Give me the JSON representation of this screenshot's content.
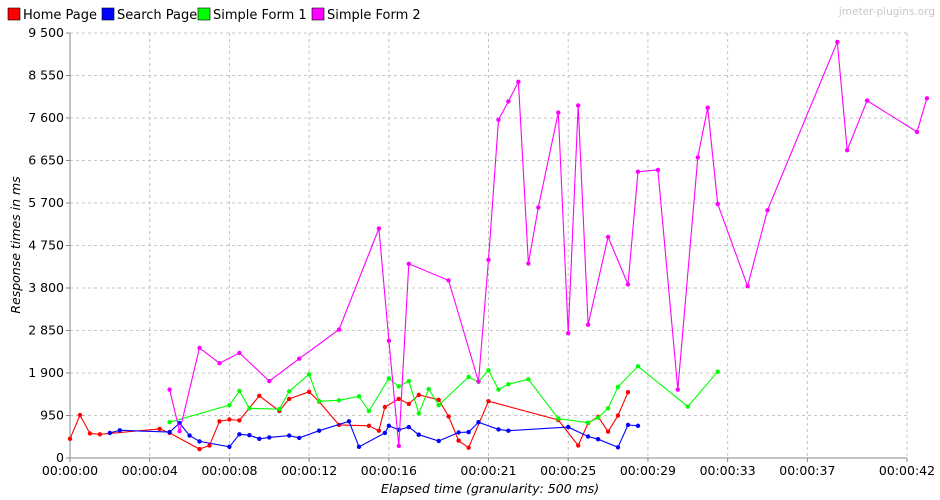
{
  "watermark": "jmeter-plugins.org",
  "chart_data": {
    "type": "line",
    "xlabel": "Elapsed time (granularity: 500 ms)",
    "ylabel": "Response times in ms",
    "xlim": [
      "00:00:00",
      "00:00:42"
    ],
    "ylim": [
      0,
      9500
    ],
    "x_ticks": [
      "00:00:00",
      "00:00:04",
      "00:00:08",
      "00:00:12",
      "00:00:16",
      "00:00:21",
      "00:00:25",
      "00:00:29",
      "00:00:33",
      "00:00:37",
      "00:00:42"
    ],
    "y_ticks": [
      "0",
      "950",
      "1 900",
      "2 850",
      "3 800",
      "4 750",
      "5 700",
      "6 650",
      "7 600",
      "8 550",
      "9 500"
    ],
    "grid": true,
    "legend_position": "top-left",
    "series": [
      {
        "name": "Home Page",
        "color": "#ff0000",
        "points": [
          [
            "00:00:00.0",
            430
          ],
          [
            "00:00:00.5",
            960
          ],
          [
            "00:00:01.0",
            550
          ],
          [
            "00:00:01.5",
            530
          ],
          [
            "00:00:04.5",
            650
          ],
          [
            "00:00:05.0",
            560
          ],
          [
            "00:00:06.5",
            200
          ],
          [
            "00:00:07.0",
            280
          ],
          [
            "00:00:07.5",
            820
          ],
          [
            "00:00:08.0",
            860
          ],
          [
            "00:00:08.5",
            840
          ],
          [
            "00:00:09.5",
            1390
          ],
          [
            "00:00:10.5",
            1050
          ],
          [
            "00:00:11.0",
            1320
          ],
          [
            "00:00:12.0",
            1480
          ],
          [
            "00:00:12.5",
            1260
          ],
          [
            "00:00:13.5",
            740
          ],
          [
            "00:00:15.0",
            720
          ],
          [
            "00:00:15.5",
            610
          ],
          [
            "00:00:15.8",
            1140
          ],
          [
            "00:00:16.5",
            1320
          ],
          [
            "00:00:17.0",
            1210
          ],
          [
            "00:00:17.5",
            1410
          ],
          [
            "00:00:18.5",
            1300
          ],
          [
            "00:00:19.0",
            930
          ],
          [
            "00:00:19.5",
            390
          ],
          [
            "00:00:20.0",
            230
          ],
          [
            "00:00:21.0",
            1270
          ],
          [
            "00:00:24.5",
            850
          ],
          [
            "00:00:25.5",
            280
          ],
          [
            "00:00:26.0",
            780
          ],
          [
            "00:00:26.5",
            920
          ],
          [
            "00:00:27.0",
            590
          ],
          [
            "00:00:27.5",
            950
          ],
          [
            "00:00:28.0",
            1470
          ]
        ]
      },
      {
        "name": "Search Page",
        "color": "#0000ff",
        "points": [
          [
            "00:00:02.0",
            560
          ],
          [
            "00:00:02.5",
            620
          ],
          [
            "00:00:05.0",
            580
          ],
          [
            "00:00:05.5",
            780
          ],
          [
            "00:00:06.0",
            500
          ],
          [
            "00:00:06.5",
            370
          ],
          [
            "00:00:08.0",
            250
          ],
          [
            "00:00:08.5",
            530
          ],
          [
            "00:00:09.0",
            510
          ],
          [
            "00:00:09.5",
            430
          ],
          [
            "00:00:10.0",
            460
          ],
          [
            "00:00:11.0",
            500
          ],
          [
            "00:00:11.5",
            450
          ],
          [
            "00:00:12.5",
            610
          ],
          [
            "00:00:14.0",
            820
          ],
          [
            "00:00:14.5",
            250
          ],
          [
            "00:00:15.8",
            560
          ],
          [
            "00:00:16.0",
            720
          ],
          [
            "00:00:16.5",
            630
          ],
          [
            "00:00:17.0",
            690
          ],
          [
            "00:00:17.5",
            520
          ],
          [
            "00:00:18.5",
            380
          ],
          [
            "00:00:19.5",
            570
          ],
          [
            "00:00:20.0",
            580
          ],
          [
            "00:00:20.5",
            800
          ],
          [
            "00:00:21.5",
            640
          ],
          [
            "00:00:22.0",
            610
          ],
          [
            "00:00:25.0",
            690
          ],
          [
            "00:00:26.0",
            480
          ],
          [
            "00:00:26.5",
            420
          ],
          [
            "00:00:27.5",
            240
          ],
          [
            "00:00:28.0",
            740
          ],
          [
            "00:00:28.5",
            720
          ]
        ]
      },
      {
        "name": "Simple Form 1",
        "color": "#00ff00",
        "points": [
          [
            "00:00:05.0",
            800
          ],
          [
            "00:00:08.0",
            1180
          ],
          [
            "00:00:08.5",
            1500
          ],
          [
            "00:00:09.0",
            1110
          ],
          [
            "00:00:10.5",
            1090
          ],
          [
            "00:00:11.0",
            1490
          ],
          [
            "00:00:12.0",
            1870
          ],
          [
            "00:00:12.5",
            1270
          ],
          [
            "00:00:13.5",
            1290
          ],
          [
            "00:00:14.5",
            1380
          ],
          [
            "00:00:15.0",
            1050
          ],
          [
            "00:00:16.0",
            1780
          ],
          [
            "00:00:16.5",
            1600
          ],
          [
            "00:00:17.0",
            1720
          ],
          [
            "00:00:17.5",
            1000
          ],
          [
            "00:00:18.0",
            1540
          ],
          [
            "00:00:18.5",
            1180
          ],
          [
            "00:00:20.0",
            1810
          ],
          [
            "00:00:20.5",
            1700
          ],
          [
            "00:00:21.0",
            1960
          ],
          [
            "00:00:21.5",
            1530
          ],
          [
            "00:00:22.0",
            1650
          ],
          [
            "00:00:23.0",
            1760
          ],
          [
            "00:00:24.5",
            880
          ],
          [
            "00:00:26.0",
            790
          ],
          [
            "00:00:26.5",
            900
          ],
          [
            "00:00:27.0",
            1110
          ],
          [
            "00:00:27.5",
            1590
          ],
          [
            "00:00:28.5",
            2050
          ],
          [
            "00:00:31.0",
            1150
          ],
          [
            "00:00:32.5",
            1930
          ]
        ]
      },
      {
        "name": "Simple Form 2",
        "color": "#ff00ff",
        "points": [
          [
            "00:00:05.0",
            1530
          ],
          [
            "00:00:05.5",
            600
          ],
          [
            "00:00:06.5",
            2460
          ],
          [
            "00:00:07.5",
            2120
          ],
          [
            "00:00:08.5",
            2350
          ],
          [
            "00:00:10.0",
            1720
          ],
          [
            "00:00:11.5",
            2220
          ],
          [
            "00:00:13.5",
            2870
          ],
          [
            "00:00:15.5",
            5130
          ],
          [
            "00:00:16.0",
            2620
          ],
          [
            "00:00:16.5",
            270
          ],
          [
            "00:00:17.0",
            4340
          ],
          [
            "00:00:19.0",
            3970
          ],
          [
            "00:00:20.5",
            1710
          ],
          [
            "00:00:21.0",
            4430
          ],
          [
            "00:00:21.5",
            7560
          ],
          [
            "00:00:22.0",
            7970
          ],
          [
            "00:00:22.5",
            8410
          ],
          [
            "00:00:23.0",
            4350
          ],
          [
            "00:00:23.5",
            5600
          ],
          [
            "00:00:24.5",
            7720
          ],
          [
            "00:00:25.0",
            2790
          ],
          [
            "00:00:25.5",
            7880
          ],
          [
            "00:00:26.0",
            2980
          ],
          [
            "00:00:27.0",
            4940
          ],
          [
            "00:00:28.0",
            3880
          ],
          [
            "00:00:28.5",
            6400
          ],
          [
            "00:00:29.5",
            6440
          ],
          [
            "00:00:30.5",
            1530
          ],
          [
            "00:00:31.5",
            6720
          ],
          [
            "00:00:32.0",
            7830
          ],
          [
            "00:00:32.5",
            5680
          ],
          [
            "00:00:34.0",
            3840
          ],
          [
            "00:00:35.0",
            5540
          ],
          [
            "00:00:38.5",
            9300
          ],
          [
            "00:00:39.0",
            6880
          ],
          [
            "00:00:40.0",
            7990
          ],
          [
            "00:00:42.5",
            7290
          ],
          [
            "00:00:43.0",
            8040
          ]
        ]
      }
    ]
  }
}
